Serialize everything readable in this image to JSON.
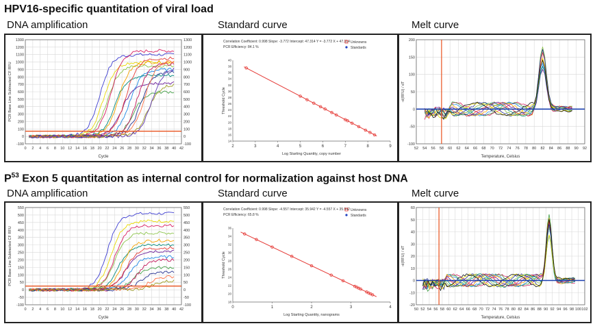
{
  "rows": [
    {
      "title": "HPV16-specific quantitation of viral load",
      "title_sup": "",
      "amp": {
        "label": "DNA amplification",
        "ylabel": "PCR Base Line Subtracted CF RFU",
        "xlabel": "Cycle",
        "ymin": -100,
        "ymax": 1300,
        "yticks": [
          -100,
          0,
          100,
          200,
          300,
          400,
          500,
          600,
          700,
          800,
          900,
          1000,
          1100,
          1200,
          1300
        ],
        "xmin": 0,
        "xmax": 42,
        "xticks": [
          0,
          2,
          4,
          6,
          8,
          10,
          12,
          14,
          16,
          18,
          20,
          22,
          24,
          26,
          28,
          30,
          32,
          34,
          36,
          38,
          40,
          42
        ],
        "threshold": 70,
        "threshold_color": "#e8501c",
        "curves": [
          {
            "color": "#3b3bd0",
            "ct": 20,
            "plateau": 1100
          },
          {
            "color": "#e8d800",
            "ct": 21,
            "plateau": 1000
          },
          {
            "color": "#8bc34a",
            "ct": 22,
            "plateau": 950
          },
          {
            "color": "#d81b60",
            "ct": 23,
            "plateau": 1150
          },
          {
            "color": "#00897b",
            "ct": 24,
            "plateau": 820
          },
          {
            "color": "#f4a300",
            "ct": 25,
            "plateau": 1000
          },
          {
            "color": "#6a1b9a",
            "ct": 26,
            "plateau": 720
          },
          {
            "color": "#e53935",
            "ct": 27,
            "plateau": 1050
          },
          {
            "color": "#1e88e5",
            "ct": 28,
            "plateau": 900
          },
          {
            "color": "#43a047",
            "ct": 29,
            "plateau": 600
          },
          {
            "color": "#c2185b",
            "ct": 30,
            "plateau": 980
          },
          {
            "color": "#283593",
            "ct": 31,
            "plateau": 870
          },
          {
            "color": "#ff7043",
            "ct": 32,
            "plateau": 1020
          },
          {
            "color": "#9e9d24",
            "ct": 33,
            "plateau": 700
          },
          {
            "color": "#5e35b1",
            "ct": 34,
            "plateau": 930
          }
        ]
      },
      "std": {
        "label": "Standard curve",
        "stats": "Correlation Coefficient: 0.998   Slope: -3.772   Intercept: 47.314   Y = -3.772 X + 47.314",
        "efficiency": "PCR Efficiency: 84.1 %",
        "legend_unknowns": "Unknowns",
        "legend_standards": "Standards",
        "ylabel": "Threshold Cycle",
        "xlabel": "Log Starting Quantity, copy number",
        "xmin": 2,
        "xmax": 9,
        "xticks": [
          2,
          3,
          4,
          5,
          6,
          7,
          8,
          9
        ],
        "ymin": 14,
        "ymax": 40,
        "slope": -3.772,
        "intercept": 47.314,
        "points_x": [
          2.6,
          5.0,
          5.3,
          5.6,
          5.9,
          6.1,
          6.4,
          6.6,
          7.0,
          7.1,
          7.3,
          7.6,
          7.9,
          8.1,
          8.3
        ]
      },
      "melt": {
        "label": "Melt curve",
        "ylabel": "-d(RFU) / dT",
        "xlabel": "Temperature, Celsius",
        "xmin": 52,
        "xmax": 92,
        "xticks": [
          52,
          54,
          56,
          58,
          60,
          62,
          64,
          66,
          68,
          70,
          72,
          74,
          76,
          78,
          80,
          82,
          84,
          86,
          88,
          90,
          92
        ],
        "ymin": -100,
        "ymax": 200,
        "yticks": [
          -100,
          -50,
          0,
          50,
          100,
          150,
          200
        ],
        "marker": 58,
        "peak": 82,
        "baseline_color": "#1a3fb0"
      }
    },
    {
      "title": " Exon 5 quantitation as internal control for normalization against host DNA",
      "title_prefix": "P",
      "title_sup": "53",
      "amp": {
        "label": "DNA amplification",
        "ylabel": "PCR Base Line Subtracted CF RFU",
        "xlabel": "Cycle",
        "ymin": -100,
        "ymax": 550,
        "yticks": [
          -100,
          -50,
          0,
          50,
          100,
          150,
          200,
          250,
          300,
          350,
          400,
          450,
          500,
          550
        ],
        "xmin": 0,
        "xmax": 42,
        "xticks": [
          0,
          2,
          4,
          6,
          8,
          10,
          12,
          14,
          16,
          18,
          20,
          22,
          24,
          26,
          28,
          30,
          32,
          34,
          36,
          38,
          40,
          42
        ],
        "threshold": 25,
        "threshold_color": "#e8501c",
        "curves": [
          {
            "color": "#3b3bd0",
            "ct": 22,
            "plateau": 510
          },
          {
            "color": "#e8d800",
            "ct": 23,
            "plateau": 460
          },
          {
            "color": "#d81b60",
            "ct": 24,
            "plateau": 430
          },
          {
            "color": "#8bc34a",
            "ct": 24,
            "plateau": 380
          },
          {
            "color": "#00897b",
            "ct": 25,
            "plateau": 300
          },
          {
            "color": "#f4a300",
            "ct": 26,
            "plateau": 330
          },
          {
            "color": "#6a1b9a",
            "ct": 27,
            "plateau": 260
          },
          {
            "color": "#e53935",
            "ct": 27,
            "plateau": 280
          },
          {
            "color": "#1e88e5",
            "ct": 28,
            "plateau": 220
          },
          {
            "color": "#43a047",
            "ct": 29,
            "plateau": 150
          },
          {
            "color": "#c2185b",
            "ct": 30,
            "plateau": 200
          },
          {
            "color": "#283593",
            "ct": 31,
            "plateau": 120
          },
          {
            "color": "#ff7043",
            "ct": 33,
            "plateau": 90
          },
          {
            "color": "#9e9d24",
            "ct": 34,
            "plateau": 60
          }
        ]
      },
      "std": {
        "label": "Standard curve",
        "stats": "Correlation Coefficient: 0.998   Slope: -4.557   Intercept: 35.942   Y = -4.557 X + 35.942",
        "efficiency": "PCR Efficiency: 65.8 %",
        "legend_unknowns": "Unknowns",
        "legend_standards": "Standards",
        "ylabel": "Threshold Cycle",
        "xlabel": "Log Starting Quantity, nanograms",
        "xmin": 0,
        "xmax": 4,
        "xticks": [
          0,
          1,
          2,
          3,
          4
        ],
        "ymin": 18,
        "ymax": 36,
        "slope": -4.557,
        "intercept": 35.942,
        "points_x": [
          0.3,
          0.6,
          1.0,
          1.5,
          2.0,
          2.5,
          2.8,
          3.1,
          3.15,
          3.2,
          3.25,
          3.4,
          3.45,
          3.5,
          3.55
        ]
      },
      "melt": {
        "label": "Melt curve",
        "ylabel": "-d(RFU) / dT",
        "xlabel": "Temperature, Celsius",
        "xmin": 50,
        "xmax": 102,
        "xticks": [
          50,
          52,
          54,
          56,
          58,
          60,
          62,
          64,
          66,
          68,
          70,
          72,
          74,
          76,
          78,
          80,
          82,
          84,
          86,
          88,
          90,
          92,
          94,
          96,
          98,
          100,
          102
        ],
        "ymin": -20,
        "ymax": 60,
        "yticks": [
          -20,
          -10,
          0,
          10,
          20,
          30,
          40,
          50,
          60
        ],
        "marker": 57,
        "peak": 91,
        "baseline_color": "#1a3fb0"
      }
    }
  ]
}
